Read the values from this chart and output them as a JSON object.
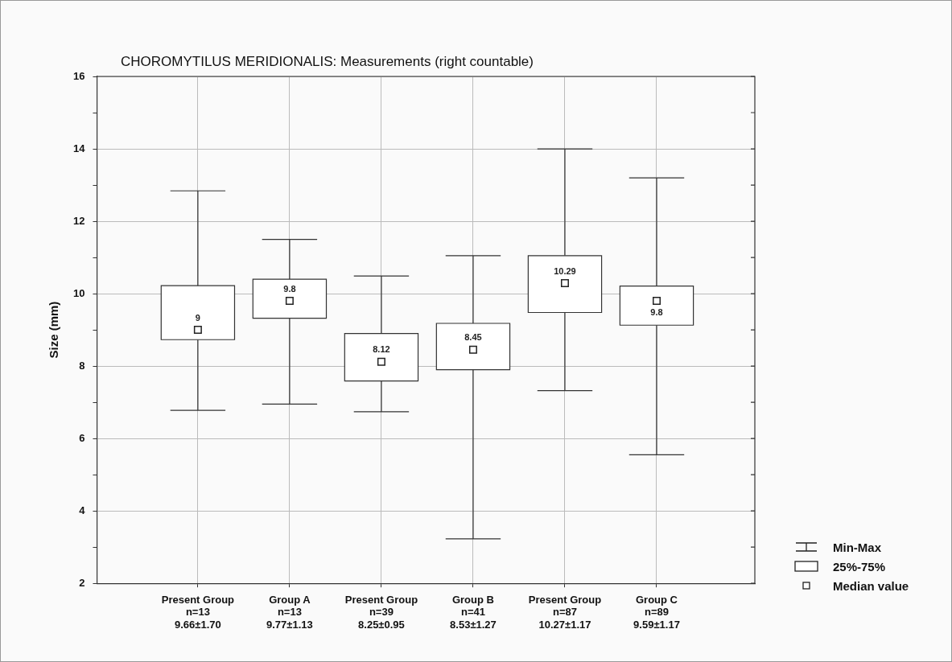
{
  "chart_data": {
    "type": "box",
    "title": "CHOROMYTILUS MERIDIONALIS: Measurements (right countable)",
    "ylabel": "Size (mm)",
    "categories": [
      "Present Group\nn=13\n9.66±1.70",
      "Group A\nn=13\n9.77±1.13",
      "Present Group\nn=39\n8.25±0.95",
      "Group B\nn=41\n8.53±1.27",
      "Present Group\nn=87\n10.27±1.17",
      "Group C\nn=89\n9.59±1.17"
    ],
    "boxes": [
      {
        "low": 6.78,
        "q1": 8.73,
        "median": 9,
        "q3": 10.22,
        "high": 12.84
      },
      {
        "low": 6.95,
        "q1": 9.32,
        "median": 9.8,
        "q3": 10.4,
        "high": 11.5
      },
      {
        "low": 6.74,
        "q1": 7.59,
        "median": 8.12,
        "q3": 8.9,
        "high": 10.49
      },
      {
        "low": 3.23,
        "q1": 7.9,
        "median": 8.45,
        "q3": 9.18,
        "high": 11.05
      },
      {
        "low": 7.32,
        "q1": 9.48,
        "median": 10.29,
        "q3": 11.05,
        "high": 14
      },
      {
        "low": 5.55,
        "q1": 9.13,
        "median": 9.8,
        "q3": 10.21,
        "high": 13.2
      }
    ],
    "ylim": [
      2,
      16
    ],
    "yticks": [
      2,
      {
        "value": 3,
        "label": null
      },
      4,
      {
        "value": 5,
        "label": null
      },
      6,
      {
        "value": 7,
        "label": null
      },
      8,
      {
        "value": 9,
        "label": null
      },
      10,
      {
        "value": 11,
        "label": null
      },
      12,
      {
        "value": 13,
        "label": null
      },
      14,
      {
        "value": 15,
        "label": null
      },
      16
    ],
    "grid": true,
    "marker": "square",
    "value_labels": [
      "9",
      "9.8",
      "8.12",
      "8.45",
      "10.29",
      "9.8"
    ],
    "annotations": [
      "Min-Max",
      "25%-75%",
      "Median value"
    ]
  }
}
